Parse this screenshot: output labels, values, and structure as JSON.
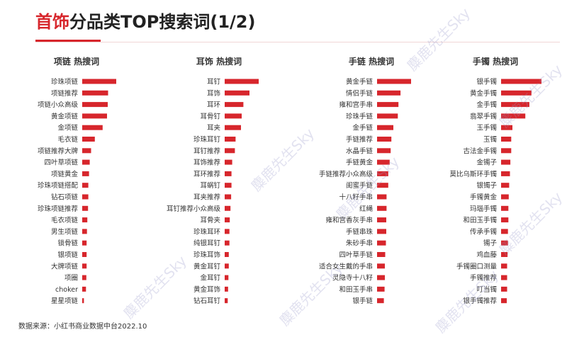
{
  "header": {
    "title_highlight": "首饰",
    "title_rest": "分品类TOP搜索词(1/2)"
  },
  "source": "数据来源：小红书商业数据中台2022.10",
  "watermark": "麋鹿先生Sky",
  "colors": {
    "bar": "#d7262c",
    "accent": "#d7262c"
  },
  "chart_data": [
    {
      "type": "bar",
      "orientation": "horizontal",
      "title": "项链 热搜词",
      "categories": [
        "珍珠项链",
        "项链推荐",
        "项链小众高级",
        "黄金项链",
        "金项链",
        "毛衣链",
        "项链推荐大牌",
        "四叶草项链",
        "项链黄金",
        "珍珠项链搭配",
        "钻石项链",
        "珍珠项链推荐",
        "毛衣项链",
        "男生项链",
        "锁骨链",
        "银项链",
        "大牌项链",
        "项圈",
        "choker",
        "星星项链"
      ],
      "values": [
        100,
        76,
        75,
        73,
        60,
        37,
        26,
        22,
        20,
        18,
        18,
        17,
        15,
        14,
        13,
        13,
        13,
        12,
        11,
        5
      ]
    },
    {
      "type": "bar",
      "orientation": "horizontal",
      "title": "耳饰 热搜词",
      "categories": [
        "耳钉",
        "耳饰",
        "耳环",
        "耳骨钉",
        "耳夹",
        "珍珠耳钉",
        "耳钉推荐",
        "耳饰推荐",
        "耳环推荐",
        "耳蜗钉",
        "耳夹推荐",
        "耳钉推荐小众高级",
        "耳骨夹",
        "珍珠耳环",
        "纯银耳钉",
        "珍珠耳饰",
        "黄金耳钉",
        "金耳钉",
        "黄金耳饰",
        "钻石耳钉"
      ],
      "values": [
        100,
        73,
        55,
        50,
        48,
        32,
        30,
        22,
        20,
        20,
        19,
        17,
        15,
        14,
        14,
        12,
        12,
        11,
        10,
        9
      ]
    },
    {
      "type": "bar",
      "orientation": "horizontal",
      "title": "手链 热搜词",
      "categories": [
        "黄金手链",
        "情侣手链",
        "雍和宫手串",
        "珍珠手链",
        "金手链",
        "手链推荐",
        "水晶手链",
        "手链黄金",
        "手链推荐小众高级",
        "闺蜜手链",
        "十八籽手串",
        "红绳",
        "雍和宫香灰手串",
        "手链串珠",
        "朱砂手串",
        "四叶草手链",
        "适合女生戴的手串",
        "灵隐寺十八籽",
        "和田玉手串",
        "银手链"
      ],
      "values": [
        100,
        69,
        63,
        61,
        48,
        42,
        40,
        37,
        33,
        33,
        28,
        28,
        27,
        27,
        26,
        24,
        23,
        23,
        22,
        20
      ]
    },
    {
      "type": "bar",
      "orientation": "horizontal",
      "title": "手镯 热搜词",
      "categories": [
        "银手镯",
        "黄金手镯",
        "金手镯",
        "翡翠手镯",
        "玉手镯",
        "玉镯",
        "古法金手镯",
        "金镯子",
        "莫比乌斯环手镯",
        "银镯子",
        "手镯黄金",
        "玛瑙手镯",
        "和田玉手镯",
        "传承手镯",
        "镯子",
        "鸡血藤",
        "手镯圈口测量",
        "手镯推荐",
        "叮当镯",
        "银手镯推荐"
      ],
      "values": [
        100,
        75,
        70,
        60,
        28,
        25,
        25,
        23,
        22,
        20,
        19,
        18,
        18,
        17,
        17,
        16,
        15,
        15,
        15,
        14
      ]
    }
  ]
}
